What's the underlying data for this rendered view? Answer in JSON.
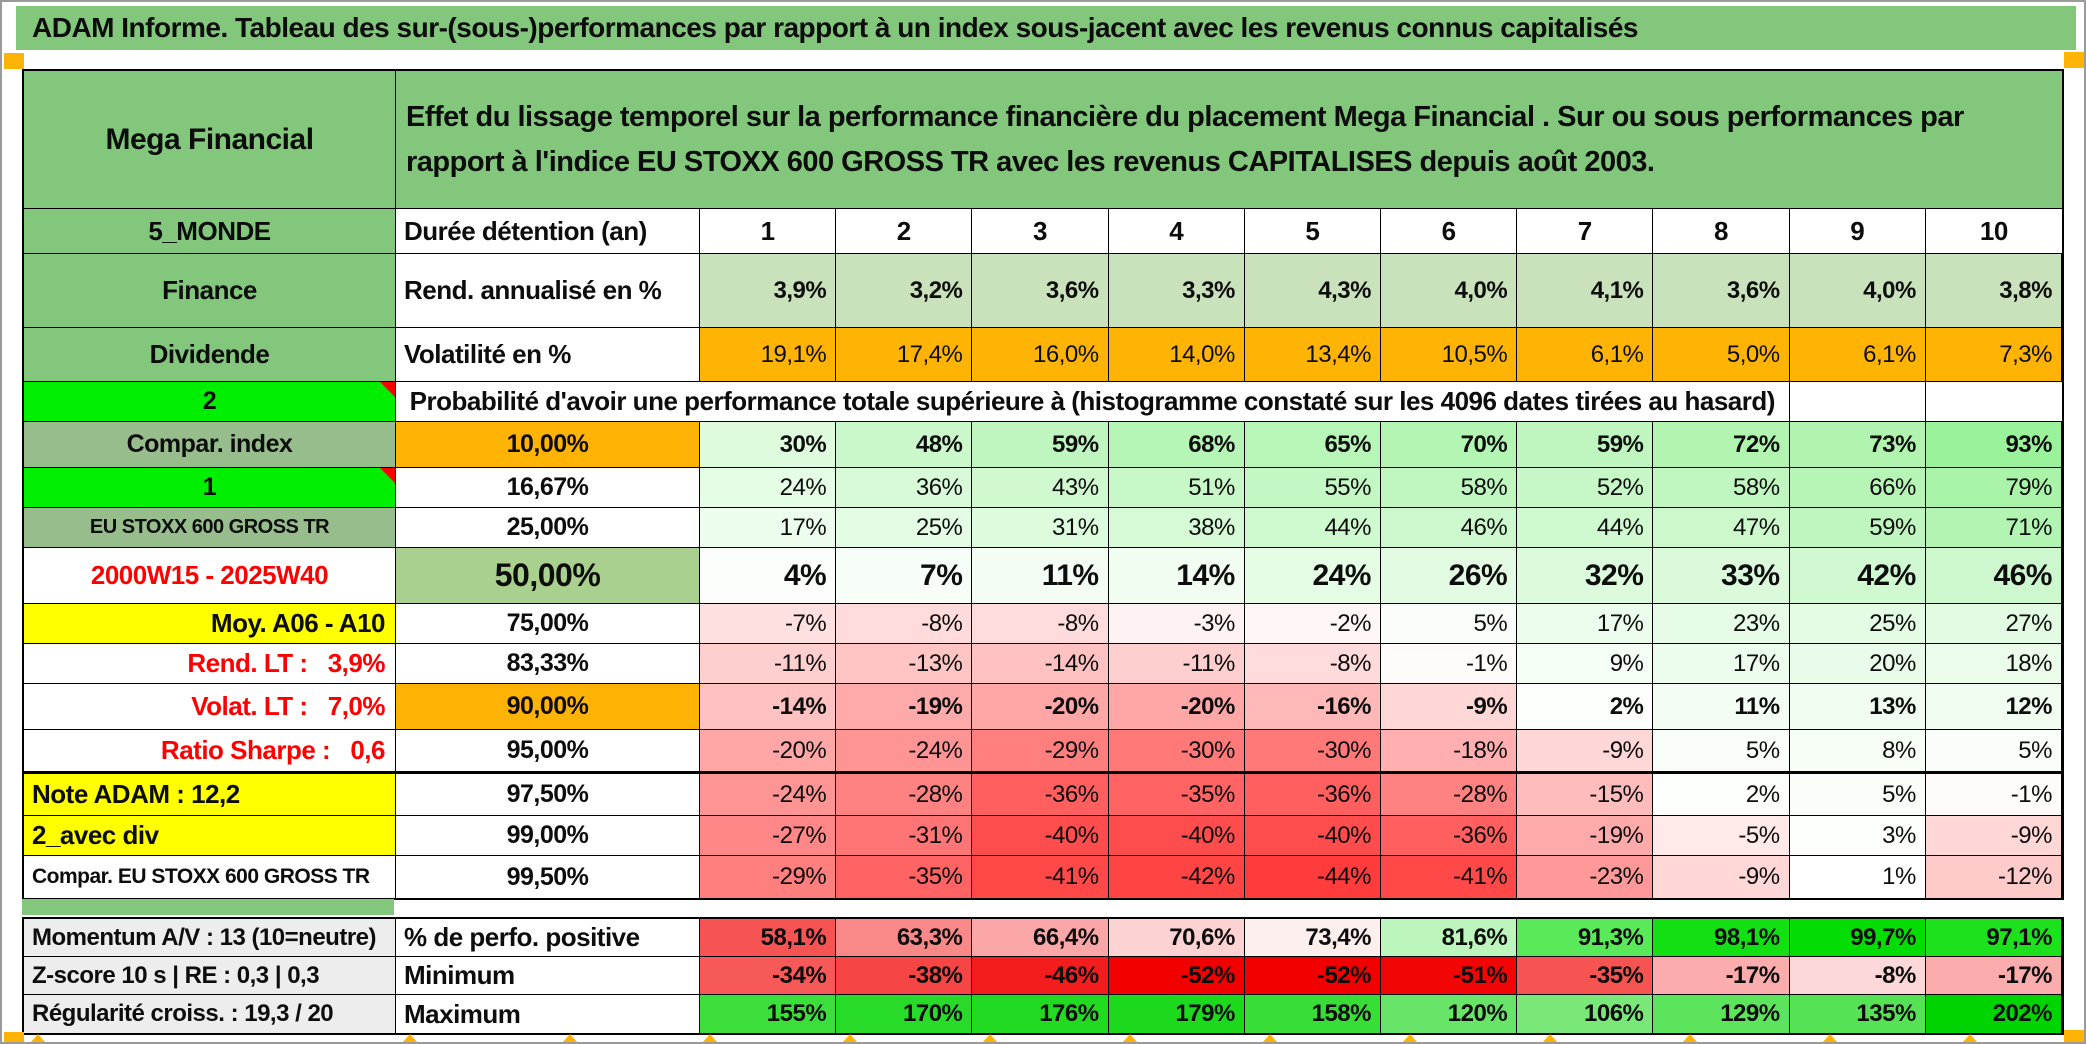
{
  "banner": {
    "title": "ADAM Informe. Tableau des sur-(sous-)performances par rapport à un index sous-jacent avec les revenus connus capitalisés"
  },
  "accents": {
    "banner_green": "#82c77c",
    "sage_green": "#97bd8d",
    "bright_green": "#00ee00",
    "orange": "#ffb305",
    "yellow": "#ffff00",
    "olive_green": "#a9d08e",
    "rend_row_green": "#c9e2bb",
    "label_gray": "#ededed",
    "red_text": "#ff0000",
    "positive_scale_green": "#00dd00",
    "negative_scale_red": "#f20000"
  },
  "header": {
    "portfolio": "Mega Financial",
    "description": "Effet du lissage temporel sur la performance financière du placement Mega Financial . Sur ou sous performances par rapport à l'indice EU STOXX 600 GROSS TR avec les revenus CAPITALISES depuis août 2003."
  },
  "duration": {
    "label_a": "5_MONDE",
    "label_b": "Durée détention (an)",
    "columns": [
      "1",
      "2",
      "3",
      "4",
      "5",
      "6",
      "7",
      "8",
      "9",
      "10"
    ]
  },
  "rend": {
    "label_a": "Finance",
    "label_b": "Rend. annualisé en %",
    "values": [
      "3,9%",
      "3,2%",
      "3,6%",
      "3,3%",
      "4,3%",
      "4,0%",
      "4,1%",
      "3,6%",
      "4,0%",
      "3,8%"
    ]
  },
  "vol": {
    "label_a": "Dividende",
    "label_b": "Volatilité en %",
    "values": [
      "19,1%",
      "17,4%",
      "16,0%",
      "14,0%",
      "13,4%",
      "10,5%",
      "6,1%",
      "5,0%",
      "6,1%",
      "7,3%"
    ]
  },
  "probability": {
    "corner": "2",
    "banner": "Probabilité d'avoir une performance totale supérieure à (histogramme constaté sur les 4096 dates tirées au hasard)",
    "rows": [
      {
        "label": "Compar. index",
        "threshold": "10,00%",
        "values": [
          "30%",
          "48%",
          "59%",
          "68%",
          "65%",
          "70%",
          "59%",
          "72%",
          "73%",
          "93%"
        ]
      },
      {
        "label": "1",
        "threshold": "16,67%",
        "values": [
          "24%",
          "36%",
          "43%",
          "51%",
          "55%",
          "58%",
          "52%",
          "58%",
          "66%",
          "79%"
        ]
      },
      {
        "label": "EU STOXX 600 GROSS TR",
        "threshold": "25,00%",
        "values": [
          "17%",
          "25%",
          "31%",
          "38%",
          "44%",
          "46%",
          "44%",
          "47%",
          "59%",
          "71%"
        ]
      },
      {
        "label": "2000W15 - 2025W40",
        "threshold": "50,00%",
        "values": [
          "4%",
          "7%",
          "11%",
          "14%",
          "24%",
          "26%",
          "32%",
          "33%",
          "42%",
          "46%"
        ]
      },
      {
        "label": "Moy. A06 - A10",
        "threshold": "75,00%",
        "values": [
          "-7%",
          "-8%",
          "-8%",
          "-3%",
          "-2%",
          "5%",
          "17%",
          "23%",
          "25%",
          "27%"
        ]
      },
      {
        "label": "Rend. LT :   3,9%",
        "threshold": "83,33%",
        "values": [
          "-11%",
          "-13%",
          "-14%",
          "-11%",
          "-8%",
          "-1%",
          "9%",
          "17%",
          "20%",
          "18%"
        ]
      },
      {
        "label": "Volat. LT :   7,0%",
        "threshold": "90,00%",
        "values": [
          "-14%",
          "-19%",
          "-20%",
          "-20%",
          "-16%",
          "-9%",
          "2%",
          "11%",
          "13%",
          "12%"
        ]
      },
      {
        "label": "Ratio Sharpe :   0,6",
        "threshold": "95,00%",
        "values": [
          "-20%",
          "-24%",
          "-29%",
          "-30%",
          "-30%",
          "-18%",
          "-9%",
          "5%",
          "8%",
          "5%"
        ]
      },
      {
        "label": "Note ADAM : 12,2",
        "threshold": "97,50%",
        "values": [
          "-24%",
          "-28%",
          "-36%",
          "-35%",
          "-36%",
          "-28%",
          "-15%",
          "2%",
          "5%",
          "-1%"
        ]
      },
      {
        "label": "2_avec div",
        "threshold": "99,00%",
        "values": [
          "-27%",
          "-31%",
          "-40%",
          "-40%",
          "-40%",
          "-36%",
          "-19%",
          "-5%",
          "3%",
          "-9%"
        ]
      },
      {
        "label": "Compar. EU STOXX 600 GROSS TR",
        "threshold": "99,50%",
        "values": [
          "-29%",
          "-35%",
          "-41%",
          "-42%",
          "-44%",
          "-41%",
          "-23%",
          "-9%",
          "1%",
          "-12%"
        ]
      }
    ]
  },
  "summary": {
    "rows": [
      {
        "label": "Momentum A/V : 13 (10=neutre)",
        "metric": "% de perfo. positive",
        "values": [
          "58,1%",
          "63,3%",
          "66,4%",
          "70,6%",
          "73,4%",
          "81,6%",
          "91,3%",
          "98,1%",
          "99,7%",
          "97,1%"
        ]
      },
      {
        "label": "Z-score 10 s | RE : 0,3 | 0,3",
        "metric": "Minimum",
        "values": [
          "-34%",
          "-38%",
          "-46%",
          "-52%",
          "-52%",
          "-51%",
          "-35%",
          "-17%",
          "-8%",
          "-17%"
        ]
      },
      {
        "label": "Régularité croiss. : 19,3 / 20",
        "metric": "Maximum",
        "values": [
          "155%",
          "170%",
          "176%",
          "179%",
          "158%",
          "120%",
          "106%",
          "129%",
          "135%",
          "202%"
        ]
      }
    ]
  }
}
